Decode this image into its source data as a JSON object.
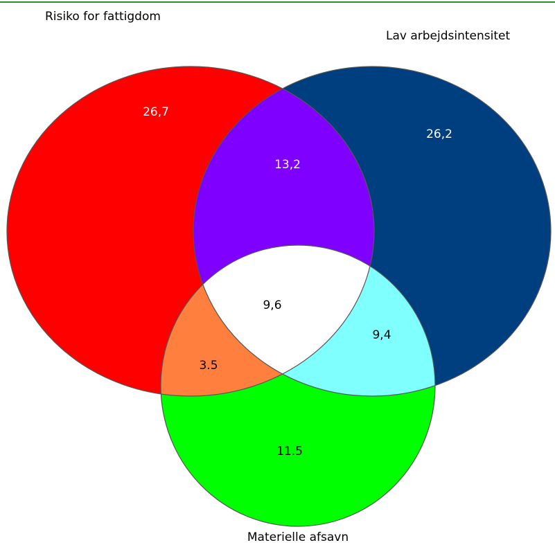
{
  "sets": [
    {
      "label": "Risiko for fattigdom"
    },
    {
      "label": "Lav arbejdsintensitet"
    },
    {
      "label": "Materielle afsavn"
    }
  ],
  "regions": [
    {
      "label": "26,7"
    },
    {
      "label": "26,2"
    },
    {
      "label": "11.5"
    },
    {
      "label": "13,2"
    },
    {
      "label": "3.5"
    },
    {
      "label": "9,4"
    },
    {
      "label": "9,6"
    }
  ]
}
